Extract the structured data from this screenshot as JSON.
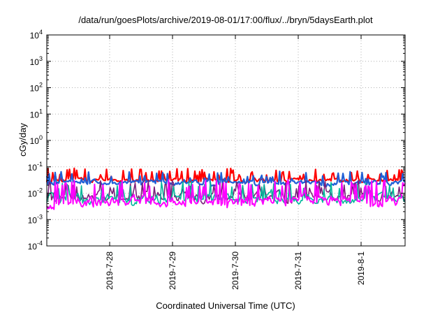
{
  "chart_data": {
    "type": "line",
    "title": "/data/run/goesPlots/archive/2019-08-01/17:00/flux/../bryn/5daysEarth.plot",
    "xlabel": "Coordinated Universal Time (UTC)",
    "ylabel": "cGy/day",
    "y_scale": "log",
    "ylim": [
      0.0001,
      10000
    ],
    "y_ticks": [
      {
        "value": 0.0001,
        "base": "10",
        "exp": "-4"
      },
      {
        "value": 0.001,
        "base": "10",
        "exp": "-3"
      },
      {
        "value": 0.01,
        "base": "10",
        "exp": "-2"
      },
      {
        "value": 0.1,
        "base": "10",
        "exp": "-1"
      },
      {
        "value": 1,
        "base": "10",
        "exp": "0"
      },
      {
        "value": 10,
        "base": "10",
        "exp": "1"
      },
      {
        "value": 100,
        "base": "10",
        "exp": "2"
      },
      {
        "value": 1000,
        "base": "10",
        "exp": "3"
      },
      {
        "value": 10000,
        "base": "10",
        "exp": "4"
      }
    ],
    "x_ticks": [
      {
        "value": 1,
        "label": "2019-7-28"
      },
      {
        "value": 2,
        "label": "2019-7-29"
      },
      {
        "value": 3,
        "label": "2019-7-30"
      },
      {
        "value": 4,
        "label": "2019-7-31"
      },
      {
        "value": 5,
        "label": "2019-8-1"
      }
    ],
    "xlim": [
      0.0,
      5.7
    ],
    "grid": true,
    "series": [
      {
        "color": "#ff0000",
        "base": 0.03,
        "spread": 0.12,
        "spike": 0.06,
        "width": 2.2,
        "seed": 11
      },
      {
        "color": "#1f5fd6",
        "base": 0.024,
        "spread": 0.15,
        "spike": 0.045,
        "width": 2.2,
        "seed": 23
      },
      {
        "color": "#7a1f7a",
        "base": 0.0075,
        "spread": 0.3,
        "spike": 0.02,
        "width": 1.6,
        "seed": 37
      },
      {
        "color": "#00b89a",
        "base": 0.0062,
        "spread": 0.3,
        "spike": 0.018,
        "width": 1.6,
        "seed": 41
      },
      {
        "color": "#ff00ff",
        "base": 0.0048,
        "spread": 0.35,
        "spike": 0.022,
        "width": 2.0,
        "seed": 53
      }
    ]
  }
}
